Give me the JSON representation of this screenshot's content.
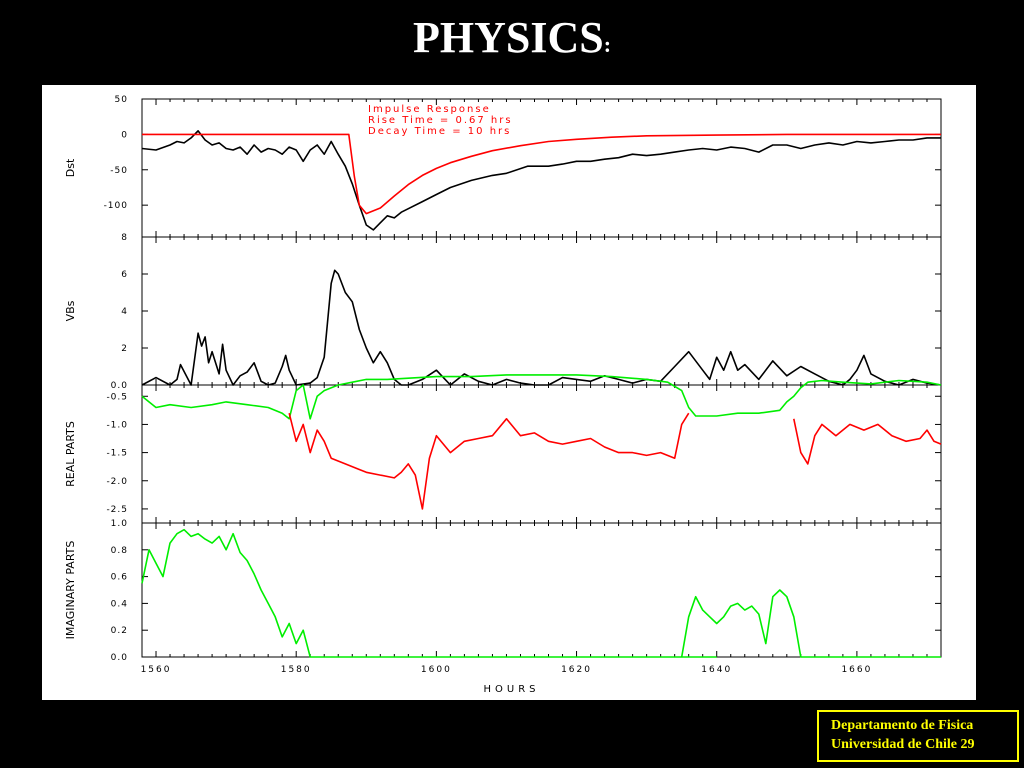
{
  "slide": {
    "title": "PHYSICS",
    "title_suffix": ":",
    "footer_line1": "Departamento de Fisica",
    "footer_line2": "Universidad de Chile  29"
  },
  "colors": {
    "background": "#000000",
    "figure_bg": "#ffffff",
    "footer_text": "#ffff00",
    "black_series": "#000000",
    "red_series": "#ff0000",
    "green_series": "#00ee00"
  },
  "chart_data": [
    {
      "type": "line",
      "ylabel": "Dst",
      "xlim": [
        1558,
        1672
      ],
      "ylim": [
        -145,
        50
      ],
      "yticks": [
        50,
        0,
        -50,
        -100
      ],
      "yticklabels": [
        "50",
        "0",
        "-50",
        "-100"
      ],
      "annotations": [
        "Impulse Response",
        "Rise Time = 0.67 hrs",
        "Decay Time = 10 hrs"
      ],
      "series": [
        {
          "color": "#000000",
          "x": [
            1558,
            1560,
            1562,
            1563,
            1564,
            1565,
            1566,
            1567,
            1568,
            1569,
            1570,
            1571,
            1572,
            1573,
            1574,
            1575,
            1576,
            1577,
            1578,
            1579,
            1580,
            1581,
            1582,
            1583,
            1584,
            1585,
            1586,
            1587,
            1588,
            1589,
            1590,
            1591,
            1592,
            1593,
            1594,
            1595,
            1596,
            1598,
            1600,
            1602,
            1605,
            1608,
            1610,
            1613,
            1616,
            1618,
            1620,
            1622,
            1624,
            1626,
            1628,
            1630,
            1632,
            1634,
            1636,
            1638,
            1640,
            1642,
            1644,
            1646,
            1648,
            1650,
            1652,
            1654,
            1656,
            1658,
            1660,
            1662,
            1664,
            1666,
            1668,
            1670,
            1672
          ],
          "values": [
            -20,
            -22,
            -15,
            -10,
            -12,
            -5,
            5,
            -8,
            -15,
            -12,
            -20,
            -22,
            -18,
            -28,
            -15,
            -25,
            -20,
            -22,
            -28,
            -18,
            -22,
            -38,
            -22,
            -15,
            -28,
            -10,
            -28,
            -45,
            -70,
            -100,
            -128,
            -135,
            -125,
            -115,
            -118,
            -110,
            -105,
            -95,
            -85,
            -75,
            -65,
            -58,
            -55,
            -45,
            -45,
            -42,
            -38,
            -38,
            -35,
            -33,
            -28,
            -30,
            -28,
            -25,
            -22,
            -20,
            -22,
            -18,
            -20,
            -25,
            -15,
            -15,
            -20,
            -15,
            -12,
            -15,
            -10,
            -12,
            -10,
            -8,
            -8,
            -5,
            -5
          ]
        },
        {
          "color": "#ff0000",
          "x": [
            1558,
            1587.5,
            1588.3,
            1589,
            1590,
            1592,
            1594,
            1596,
            1598,
            1600,
            1602,
            1605,
            1608,
            1612,
            1616,
            1620,
            1625,
            1630,
            1640,
            1650,
            1660,
            1672
          ],
          "values": [
            0,
            0,
            -60,
            -100,
            -112,
            -104,
            -87,
            -71,
            -58,
            -48,
            -40,
            -31,
            -23,
            -16,
            -10,
            -7,
            -4,
            -2,
            -1,
            0,
            0,
            0
          ]
        }
      ]
    },
    {
      "type": "line",
      "ylabel": "VBs",
      "xlim": [
        1558,
        1672
      ],
      "ylim": [
        0,
        8
      ],
      "yticks": [
        0,
        2,
        4,
        6,
        8
      ],
      "yticklabels": [
        "0.0",
        "2",
        "4",
        "6",
        "8"
      ],
      "series": [
        {
          "color": "#000000",
          "x": [
            1558,
            1560,
            1562,
            1563,
            1563.5,
            1565,
            1566,
            1566.5,
            1567,
            1567.5,
            1568,
            1569,
            1569.5,
            1570,
            1571,
            1572,
            1573,
            1574,
            1575,
            1576,
            1577,
            1578,
            1578.5,
            1579,
            1580,
            1582,
            1583,
            1584,
            1585,
            1585.5,
            1586,
            1587,
            1588,
            1589,
            1590,
            1591,
            1592,
            1593,
            1594,
            1595,
            1596,
            1598,
            1600,
            1602,
            1604,
            1606,
            1608,
            1610,
            1612,
            1614,
            1616,
            1618,
            1620,
            1622,
            1624,
            1626,
            1628,
            1630,
            1632,
            1634,
            1636,
            1638,
            1639,
            1640,
            1641,
            1642,
            1643,
            1644,
            1646,
            1648,
            1650,
            1652,
            1654,
            1656,
            1658,
            1659,
            1660,
            1661,
            1662,
            1664,
            1666,
            1668,
            1670,
            1672
          ],
          "values": [
            0,
            0.4,
            0,
            0.3,
            1.1,
            0,
            2.8,
            2.1,
            2.6,
            1.2,
            1.8,
            0.6,
            2.2,
            0.8,
            0,
            0.5,
            0.7,
            1.2,
            0.2,
            0,
            0.1,
            1.0,
            1.6,
            0.8,
            0,
            0.1,
            0.4,
            1.5,
            5.5,
            6.2,
            6.0,
            5.0,
            4.5,
            3.0,
            2.0,
            1.2,
            1.8,
            1.2,
            0.3,
            0,
            0,
            0.3,
            0.8,
            0,
            0.6,
            0.2,
            0,
            0.3,
            0.1,
            0,
            0,
            0.4,
            0.3,
            0.2,
            0.5,
            0.3,
            0.1,
            0.3,
            0.2,
            1.0,
            1.8,
            0.8,
            0.3,
            1.5,
            0.8,
            1.8,
            0.8,
            1.1,
            0.3,
            1.3,
            0.5,
            1.0,
            0.6,
            0.2,
            0,
            0.3,
            0.8,
            1.6,
            0.6,
            0.2,
            0,
            0.3,
            0.1,
            0
          ],
          "_note": ""
        }
      ]
    },
    {
      "type": "line",
      "ylabel": "REAL PARTS",
      "xlim": [
        1558,
        1672
      ],
      "ylim": [
        -2.75,
        -0.3
      ],
      "yticks": [
        -0.5,
        -1.0,
        -1.5,
        -2.0,
        -2.5
      ],
      "yticklabels": [
        "-0.5",
        "-1.0",
        "-1.5",
        "-2.0",
        "-2.5"
      ],
      "series": [
        {
          "color": "#00ee00",
          "x": [
            1558,
            1560,
            1562,
            1565,
            1568,
            1570,
            1573,
            1576,
            1578,
            1579,
            1580,
            1581,
            1582,
            1583,
            1584,
            1586,
            1588,
            1590,
            1593,
            1596,
            1600,
            1605,
            1610,
            1615,
            1620,
            1625,
            1630,
            1633,
            1635,
            1636,
            1637,
            1640,
            1643,
            1646,
            1649,
            1650,
            1651,
            1652,
            1653,
            1655,
            1658,
            1662,
            1666,
            1670,
            1672
          ],
          "values": [
            -0.5,
            -0.7,
            -0.65,
            -0.7,
            -0.65,
            -0.6,
            -0.65,
            -0.7,
            -0.8,
            -0.9,
            -0.4,
            -0.3,
            -0.9,
            -0.5,
            -0.4,
            -0.3,
            -0.25,
            -0.2,
            -0.2,
            -0.18,
            -0.15,
            -0.15,
            -0.12,
            -0.12,
            -0.12,
            -0.15,
            -0.2,
            -0.25,
            -0.4,
            -0.7,
            -0.85,
            -0.85,
            -0.8,
            -0.8,
            -0.75,
            -0.6,
            -0.5,
            -0.35,
            -0.25,
            -0.22,
            -0.25,
            -0.28,
            -0.22,
            -0.25,
            -0.3
          ]
        },
        {
          "color": "#ff0000",
          "x": [
            1579,
            1580,
            1581,
            1582,
            1583,
            1584,
            1585,
            1587,
            1589,
            1590,
            1592,
            1594,
            1595,
            1596,
            1597,
            1598,
            1599,
            1600,
            1602,
            1604,
            1606,
            1608,
            1610,
            1612,
            1614,
            1616,
            1618,
            1620,
            1622,
            1624,
            1626,
            1628,
            1630,
            1632,
            1634,
            1635,
            1636
          ],
          "values": [
            -0.8,
            -1.3,
            -1.0,
            -1.5,
            -1.1,
            -1.3,
            -1.6,
            -1.7,
            -1.8,
            -1.85,
            -1.9,
            -1.95,
            -1.85,
            -1.7,
            -1.9,
            -2.5,
            -1.6,
            -1.2,
            -1.5,
            -1.3,
            -1.25,
            -1.2,
            -0.9,
            -1.2,
            -1.15,
            -1.3,
            -1.35,
            -1.3,
            -1.25,
            -1.4,
            -1.5,
            -1.5,
            -1.55,
            -1.5,
            -1.6,
            -1.0,
            -0.8
          ]
        },
        {
          "color": "#ff0000",
          "x": [
            1651,
            1652,
            1653,
            1654,
            1655,
            1657,
            1659,
            1661,
            1663,
            1665,
            1667,
            1669,
            1670,
            1671,
            1672
          ],
          "values": [
            -0.9,
            -1.5,
            -1.7,
            -1.2,
            -1.0,
            -1.2,
            -1.0,
            -1.1,
            -1.0,
            -1.2,
            -1.3,
            -1.25,
            -1.1,
            -1.3,
            -1.35
          ]
        }
      ]
    },
    {
      "type": "line",
      "ylabel": "IMAGINARY PARTS",
      "xlabel": "HOURS",
      "xlim": [
        1558,
        1672
      ],
      "ylim": [
        0,
        1.0
      ],
      "yticks": [
        0,
        0.2,
        0.4,
        0.6,
        0.8,
        1.0
      ],
      "yticklabels": [
        "0.0",
        "0.2",
        "0.4",
        "0.6",
        "0.8",
        "1.0"
      ],
      "xticks": [
        1560,
        1580,
        1600,
        1620,
        1640,
        1660
      ],
      "xticklabels": [
        "1560",
        "1580",
        "1600",
        "1620",
        "1640",
        "1660"
      ],
      "series": [
        {
          "color": "#00ee00",
          "x": [
            1558,
            1559,
            1560,
            1561,
            1562,
            1563,
            1564,
            1565,
            1566,
            1567,
            1568,
            1569,
            1570,
            1571,
            1572,
            1573,
            1574,
            1575,
            1576,
            1577,
            1578,
            1579,
            1580,
            1581,
            1582,
            1640
          ],
          "values": [
            0.55,
            0.8,
            0.7,
            0.6,
            0.85,
            0.92,
            0.95,
            0.9,
            0.92,
            0.88,
            0.85,
            0.9,
            0.8,
            0.92,
            0.78,
            0.72,
            0.62,
            0.5,
            0.4,
            0.3,
            0.15,
            0.25,
            0.1,
            0.2,
            0,
            0
          ]
        },
        {
          "color": "#00ee00",
          "x": [
            1635,
            1636,
            1637,
            1638,
            1639,
            1640,
            1641,
            1642,
            1643,
            1644,
            1645,
            1646,
            1647,
            1648,
            1649,
            1650,
            1651,
            1652,
            1672
          ],
          "values": [
            0,
            0.3,
            0.45,
            0.35,
            0.3,
            0.25,
            0.3,
            0.38,
            0.4,
            0.35,
            0.38,
            0.32,
            0.1,
            0.45,
            0.5,
            0.45,
            0.3,
            0,
            0
          ]
        }
      ]
    }
  ]
}
